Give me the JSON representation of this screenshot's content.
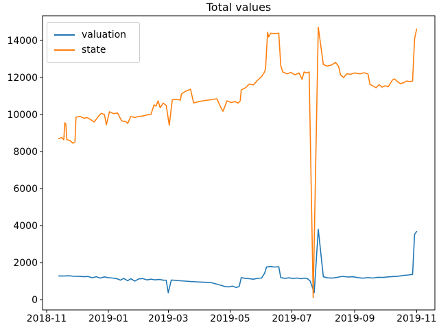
{
  "chart_data": {
    "type": "line",
    "title": "Total values",
    "xlabel": "",
    "ylabel": "",
    "grid": false,
    "xlim": [
      "2018-10-28",
      "2019-11-19"
    ],
    "ylim": [
      -560,
      15340
    ],
    "x_ticks": [
      {
        "date": "2018-11-01",
        "label": "2018-11"
      },
      {
        "date": "2019-01-01",
        "label": "2019-01"
      },
      {
        "date": "2019-03-01",
        "label": "2019-03"
      },
      {
        "date": "2019-05-01",
        "label": "2019-05"
      },
      {
        "date": "2019-07-01",
        "label": "2019-07"
      },
      {
        "date": "2019-09-01",
        "label": "2019-09"
      },
      {
        "date": "2019-11-01",
        "label": "2019-11"
      }
    ],
    "y_ticks": [
      0,
      2000,
      4000,
      6000,
      8000,
      10000,
      12000,
      14000
    ],
    "legend": {
      "position": "upper left",
      "entries": [
        {
          "label": "valuation",
          "color": "#1f77b4"
        },
        {
          "label": "state",
          "color": "#ff7f0e"
        }
      ]
    },
    "series": [
      {
        "name": "valuation",
        "color": "#1f77b4",
        "points": [
          [
            "2018-11-13",
            1280
          ],
          [
            "2018-11-18",
            1270
          ],
          [
            "2018-11-23",
            1285
          ],
          [
            "2018-11-28",
            1255
          ],
          [
            "2018-12-03",
            1260
          ],
          [
            "2018-12-08",
            1235
          ],
          [
            "2018-12-12",
            1250
          ],
          [
            "2018-12-16",
            1180
          ],
          [
            "2018-12-20",
            1235
          ],
          [
            "2018-12-24",
            1160
          ],
          [
            "2018-12-28",
            1225
          ],
          [
            "2019-01-01",
            1180
          ],
          [
            "2019-01-05",
            1165
          ],
          [
            "2019-01-09",
            1135
          ],
          [
            "2019-01-13",
            1050
          ],
          [
            "2019-01-16",
            1140
          ],
          [
            "2019-01-20",
            1020
          ],
          [
            "2019-01-23",
            1125
          ],
          [
            "2019-01-27",
            1000
          ],
          [
            "2019-01-31",
            1120
          ],
          [
            "2019-02-04",
            1135
          ],
          [
            "2019-02-08",
            1060
          ],
          [
            "2019-02-12",
            1105
          ],
          [
            "2019-02-16",
            1065
          ],
          [
            "2019-02-20",
            1085
          ],
          [
            "2019-02-24",
            1050
          ],
          [
            "2019-02-27",
            1045
          ],
          [
            "2019-03-01",
            370
          ],
          [
            "2019-03-04",
            1055
          ],
          [
            "2019-03-08",
            1040
          ],
          [
            "2019-03-13",
            1015
          ],
          [
            "2019-03-18",
            995
          ],
          [
            "2019-03-23",
            975
          ],
          [
            "2019-03-28",
            960
          ],
          [
            "2019-04-02",
            945
          ],
          [
            "2019-04-07",
            935
          ],
          [
            "2019-04-12",
            920
          ],
          [
            "2019-04-17",
            850
          ],
          [
            "2019-04-22",
            770
          ],
          [
            "2019-04-26",
            705
          ],
          [
            "2019-04-30",
            685
          ],
          [
            "2019-05-03",
            725
          ],
          [
            "2019-05-07",
            655
          ],
          [
            "2019-05-10",
            700
          ],
          [
            "2019-05-12",
            1185
          ],
          [
            "2019-05-16",
            1150
          ],
          [
            "2019-05-20",
            1125
          ],
          [
            "2019-05-24",
            1100
          ],
          [
            "2019-05-28",
            1145
          ],
          [
            "2019-06-01",
            1165
          ],
          [
            "2019-06-04",
            1420
          ],
          [
            "2019-06-06",
            1760
          ],
          [
            "2019-06-10",
            1785
          ],
          [
            "2019-06-14",
            1755
          ],
          [
            "2019-06-18",
            1775
          ],
          [
            "2019-06-20",
            1185
          ],
          [
            "2019-06-24",
            1150
          ],
          [
            "2019-06-28",
            1175
          ],
          [
            "2019-07-02",
            1140
          ],
          [
            "2019-07-06",
            1165
          ],
          [
            "2019-07-10",
            1125
          ],
          [
            "2019-07-13",
            1155
          ],
          [
            "2019-07-16",
            1140
          ],
          [
            "2019-07-19",
            1000
          ],
          [
            "2019-07-23",
            380
          ],
          [
            "2019-07-27",
            3800
          ],
          [
            "2019-08-01",
            1230
          ],
          [
            "2019-08-05",
            1175
          ],
          [
            "2019-08-10",
            1160
          ],
          [
            "2019-08-15",
            1205
          ],
          [
            "2019-08-20",
            1255
          ],
          [
            "2019-08-25",
            1220
          ],
          [
            "2019-08-30",
            1235
          ],
          [
            "2019-09-04",
            1185
          ],
          [
            "2019-09-09",
            1155
          ],
          [
            "2019-09-14",
            1185
          ],
          [
            "2019-09-19",
            1165
          ],
          [
            "2019-09-24",
            1205
          ],
          [
            "2019-09-29",
            1195
          ],
          [
            "2019-10-04",
            1225
          ],
          [
            "2019-10-09",
            1245
          ],
          [
            "2019-10-14",
            1265
          ],
          [
            "2019-10-19",
            1305
          ],
          [
            "2019-10-24",
            1330
          ],
          [
            "2019-10-28",
            1360
          ],
          [
            "2019-10-30",
            3520
          ],
          [
            "2019-11-01",
            3680
          ]
        ]
      },
      {
        "name": "state",
        "color": "#ff7f0e",
        "points": [
          [
            "2018-11-13",
            8700
          ],
          [
            "2018-11-16",
            8760
          ],
          [
            "2018-11-18",
            8640
          ],
          [
            "2018-11-19",
            9560
          ],
          [
            "2018-11-20",
            9480
          ],
          [
            "2018-11-21",
            8640
          ],
          [
            "2018-11-24",
            8600
          ],
          [
            "2018-11-27",
            8450
          ],
          [
            "2018-11-29",
            8520
          ],
          [
            "2018-11-30",
            9860
          ],
          [
            "2018-12-04",
            9900
          ],
          [
            "2018-12-08",
            9800
          ],
          [
            "2018-12-11",
            9840
          ],
          [
            "2018-12-14",
            9740
          ],
          [
            "2018-12-18",
            9600
          ],
          [
            "2018-12-22",
            9900
          ],
          [
            "2018-12-25",
            10070
          ],
          [
            "2018-12-28",
            10000
          ],
          [
            "2018-12-30",
            9450
          ],
          [
            "2019-01-02",
            10150
          ],
          [
            "2019-01-06",
            10050
          ],
          [
            "2019-01-10",
            10080
          ],
          [
            "2019-01-14",
            9660
          ],
          [
            "2019-01-18",
            9620
          ],
          [
            "2019-01-20",
            9520
          ],
          [
            "2019-01-23",
            9890
          ],
          [
            "2019-01-27",
            9840
          ],
          [
            "2019-01-31",
            9900
          ],
          [
            "2019-02-04",
            9920
          ],
          [
            "2019-02-08",
            9980
          ],
          [
            "2019-02-12",
            10010
          ],
          [
            "2019-02-15",
            10520
          ],
          [
            "2019-02-17",
            10460
          ],
          [
            "2019-02-19",
            10740
          ],
          [
            "2019-02-21",
            10370
          ],
          [
            "2019-02-24",
            10620
          ],
          [
            "2019-02-27",
            10500
          ],
          [
            "2019-03-02",
            9420
          ],
          [
            "2019-03-05",
            10800
          ],
          [
            "2019-03-09",
            10820
          ],
          [
            "2019-03-13",
            10780
          ],
          [
            "2019-03-14",
            11110
          ],
          [
            "2019-03-18",
            11260
          ],
          [
            "2019-03-23",
            11370
          ],
          [
            "2019-03-26",
            10630
          ],
          [
            "2019-03-31",
            10700
          ],
          [
            "2019-04-06",
            10760
          ],
          [
            "2019-04-12",
            10800
          ],
          [
            "2019-04-18",
            10850
          ],
          [
            "2019-04-22",
            10370
          ],
          [
            "2019-04-24",
            10180
          ],
          [
            "2019-04-28",
            10740
          ],
          [
            "2019-05-02",
            10650
          ],
          [
            "2019-05-06",
            10700
          ],
          [
            "2019-05-09",
            10620
          ],
          [
            "2019-05-11",
            10740
          ],
          [
            "2019-05-12",
            11330
          ],
          [
            "2019-05-16",
            11440
          ],
          [
            "2019-05-20",
            11650
          ],
          [
            "2019-05-24",
            11600
          ],
          [
            "2019-05-28",
            11850
          ],
          [
            "2019-06-01",
            12050
          ],
          [
            "2019-06-04",
            12300
          ],
          [
            "2019-06-05",
            12500
          ],
          [
            "2019-06-07",
            14450
          ],
          [
            "2019-06-08",
            14200
          ],
          [
            "2019-06-10",
            14400
          ],
          [
            "2019-06-14",
            14380
          ],
          [
            "2019-06-18",
            14400
          ],
          [
            "2019-06-20",
            12650
          ],
          [
            "2019-06-22",
            12300
          ],
          [
            "2019-06-26",
            12200
          ],
          [
            "2019-06-30",
            12280
          ],
          [
            "2019-07-04",
            12150
          ],
          [
            "2019-07-08",
            12250
          ],
          [
            "2019-07-11",
            11900
          ],
          [
            "2019-07-13",
            12300
          ],
          [
            "2019-07-16",
            12250
          ],
          [
            "2019-07-18",
            12300
          ],
          [
            "2019-07-22",
            100
          ],
          [
            "2019-07-27",
            14720
          ],
          [
            "2019-08-01",
            12700
          ],
          [
            "2019-08-05",
            12620
          ],
          [
            "2019-08-09",
            12680
          ],
          [
            "2019-08-13",
            12820
          ],
          [
            "2019-08-16",
            12600
          ],
          [
            "2019-08-18",
            12150
          ],
          [
            "2019-08-21",
            12000
          ],
          [
            "2019-08-24",
            12200
          ],
          [
            "2019-08-28",
            12180
          ],
          [
            "2019-09-01",
            12250
          ],
          [
            "2019-09-06",
            12200
          ],
          [
            "2019-09-10",
            12260
          ],
          [
            "2019-09-14",
            12200
          ],
          [
            "2019-09-16",
            11630
          ],
          [
            "2019-09-19",
            11550
          ],
          [
            "2019-09-22",
            11450
          ],
          [
            "2019-09-25",
            11620
          ],
          [
            "2019-09-28",
            11480
          ],
          [
            "2019-10-01",
            11560
          ],
          [
            "2019-10-04",
            11500
          ],
          [
            "2019-10-08",
            11860
          ],
          [
            "2019-10-10",
            11930
          ],
          [
            "2019-10-13",
            11790
          ],
          [
            "2019-10-16",
            11670
          ],
          [
            "2019-10-19",
            11720
          ],
          [
            "2019-10-22",
            11810
          ],
          [
            "2019-10-26",
            11780
          ],
          [
            "2019-10-28",
            11820
          ],
          [
            "2019-10-30",
            14100
          ],
          [
            "2019-11-01",
            14620
          ]
        ]
      }
    ]
  }
}
